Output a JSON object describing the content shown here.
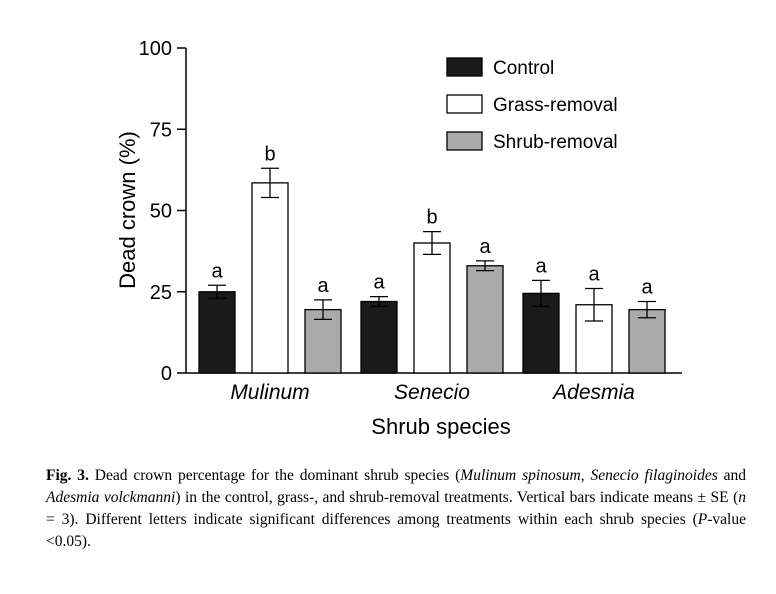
{
  "chart_data": {
    "type": "bar",
    "categories": [
      "Mulinum",
      "Senecio",
      "Adesmia"
    ],
    "xlabel": "Shrub species",
    "ylabel": "Dead crown (%)",
    "ylim": [
      0,
      100
    ],
    "yticks": [
      "0",
      "25",
      "50",
      "75",
      "100"
    ],
    "grid": false,
    "legend_position": "top-right",
    "series": [
      {
        "name": "Control",
        "color": "#1a1a1a",
        "values": [
          25,
          22,
          24.5
        ],
        "se": [
          2,
          1.5,
          4
        ],
        "letters": [
          "a",
          "a",
          "a"
        ]
      },
      {
        "name": "Grass-removal",
        "color": "#ffffff",
        "values": [
          58.5,
          40,
          21
        ],
        "se": [
          4.5,
          3.5,
          5
        ],
        "letters": [
          "b",
          "b",
          "a"
        ]
      },
      {
        "name": "Shrub-removal",
        "color": "#aaaaaa",
        "values": [
          19.5,
          33,
          19.5
        ],
        "se": [
          3,
          1.5,
          2.5
        ],
        "letters": [
          "a",
          "a",
          "a"
        ]
      }
    ]
  },
  "caption": {
    "fig_label": "Fig. 3.",
    "t1": " Dead crown percentage for the dominant shrub species (",
    "sp1": "Mulinum spinosum",
    "t2": ", ",
    "sp2": "Senecio filaginoides",
    "t3": " and ",
    "sp3": "Adesmia volckmanni",
    "t4": ") in the control, grass-, and shrub-removal treatments. Vertical bars indicate means ± SE (",
    "n_var": "n",
    "t5": " = 3). Different letters indicate significant differences among treatments within each shrub species (",
    "p_var": "P",
    "t6": "-value <0.05)."
  }
}
